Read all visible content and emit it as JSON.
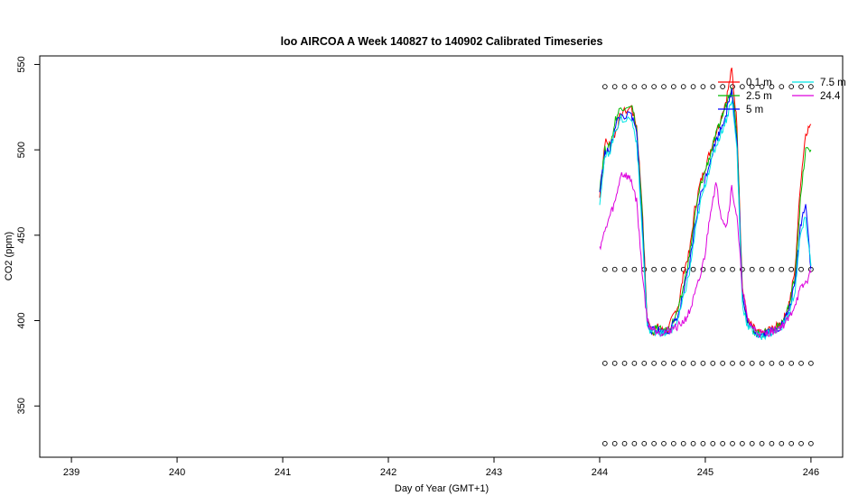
{
  "chart_data": {
    "type": "line",
    "title": "loo AIRCOA A  Week 140827 to 140902  Calibrated Timeseries",
    "xlabel": "Day of Year (GMT+1)",
    "ylabel": "CO2 (ppm)",
    "xlim": [
      238.7,
      246.3
    ],
    "ylim": [
      320,
      555
    ],
    "xticks": [
      239,
      240,
      241,
      242,
      243,
      244,
      245,
      246
    ],
    "yticks": [
      350,
      400,
      450,
      500,
      550
    ],
    "grid": false,
    "legend": "top-right",
    "series": [
      {
        "name": "0.1 m",
        "color": "#ff0000",
        "x": [
          244.0,
          244.05,
          244.1,
          244.15,
          244.2,
          244.3,
          244.35,
          244.4,
          244.45,
          244.5,
          244.55,
          244.6,
          244.65,
          244.7,
          244.75,
          244.8,
          244.85,
          244.9,
          244.95,
          245.0,
          245.05,
          245.1,
          245.15,
          245.2,
          245.25,
          245.3,
          245.35,
          245.4,
          245.45,
          245.5,
          245.55,
          245.6,
          245.65,
          245.7,
          245.75,
          245.8,
          245.85,
          245.9,
          245.95,
          246.0
        ],
        "y": [
          472,
          505,
          503,
          510,
          521,
          525,
          514,
          470,
          400,
          393,
          396,
          394,
          395,
          403,
          410,
          430,
          440,
          465,
          480,
          490,
          500,
          510,
          519,
          530,
          547,
          515,
          420,
          400,
          396,
          393,
          392,
          395,
          395,
          398,
          402,
          412,
          430,
          480,
          510,
          515
        ]
      },
      {
        "name": "2.5 m",
        "color": "#00bb00",
        "x": [
          244.0,
          244.05,
          244.1,
          244.15,
          244.2,
          244.3,
          244.35,
          244.4,
          244.45,
          244.5,
          244.55,
          244.6,
          244.65,
          244.7,
          244.75,
          244.8,
          244.85,
          244.9,
          244.95,
          245.0,
          245.05,
          245.1,
          245.15,
          245.2,
          245.25,
          245.3,
          245.35,
          245.4,
          245.45,
          245.5,
          245.55,
          245.6,
          245.65,
          245.7,
          245.75,
          245.8,
          245.85,
          245.9,
          245.95,
          246.0
        ],
        "y": [
          478,
          500,
          502,
          518,
          525,
          527,
          512,
          465,
          400,
          394,
          396,
          393,
          395,
          400,
          407,
          422,
          438,
          460,
          478,
          488,
          498,
          508,
          518,
          527,
          538,
          510,
          418,
          398,
          395,
          392,
          392,
          394,
          395,
          397,
          401,
          410,
          427,
          470,
          500,
          500
        ]
      },
      {
        "name": "5 m",
        "color": "#0000ff",
        "x": [
          244.0,
          244.05,
          244.1,
          244.15,
          244.2,
          244.3,
          244.35,
          244.4,
          244.45,
          244.5,
          244.55,
          244.6,
          244.65,
          244.7,
          244.75,
          244.8,
          244.85,
          244.9,
          244.95,
          245.0,
          245.05,
          245.1,
          245.15,
          245.2,
          245.25,
          245.3,
          245.35,
          245.4,
          245.45,
          245.5,
          245.55,
          245.6,
          245.65,
          245.7,
          245.75,
          245.8,
          245.85,
          245.9,
          245.95,
          246.0
        ],
        "y": [
          475,
          498,
          500,
          515,
          520,
          520,
          510,
          460,
          398,
          394,
          395,
          393,
          394,
          398,
          404,
          418,
          432,
          455,
          472,
          483,
          495,
          505,
          513,
          522,
          535,
          505,
          415,
          398,
          395,
          392,
          392,
          394,
          394,
          396,
          400,
          408,
          422,
          455,
          470,
          430
        ]
      },
      {
        "name": "7.5 m",
        "color": "#00e5e5",
        "x": [
          244.0,
          244.05,
          244.1,
          244.15,
          244.2,
          244.3,
          244.35,
          244.4,
          244.45,
          244.5,
          244.55,
          244.6,
          244.65,
          244.7,
          244.75,
          244.8,
          244.85,
          244.9,
          244.95,
          245.0,
          245.05,
          245.1,
          245.15,
          245.2,
          245.25,
          245.3,
          245.35,
          245.4,
          245.45,
          245.5,
          245.55,
          245.6,
          245.65,
          245.7,
          245.75,
          245.8,
          245.85,
          245.9,
          245.95,
          246.0
        ],
        "y": [
          470,
          495,
          500,
          512,
          518,
          518,
          505,
          455,
          397,
          393,
          394,
          392,
          393,
          396,
          402,
          415,
          428,
          450,
          468,
          480,
          492,
          502,
          510,
          518,
          530,
          500,
          410,
          397,
          394,
          391,
          391,
          393,
          393,
          395,
          399,
          405,
          418,
          450,
          460,
          432
        ]
      },
      {
        "name": "24.4",
        "color": "#dd00dd",
        "x": [
          244.0,
          244.05,
          244.1,
          244.15,
          244.2,
          244.25,
          244.3,
          244.35,
          244.4,
          244.45,
          244.5,
          244.55,
          244.6,
          244.65,
          244.7,
          244.75,
          244.8,
          244.85,
          244.9,
          244.95,
          245.0,
          245.05,
          245.1,
          245.15,
          245.2,
          245.25,
          245.3,
          245.35,
          245.4,
          245.45,
          245.5,
          245.55,
          245.6,
          245.65,
          245.7,
          245.75,
          245.8,
          245.85,
          245.9,
          245.95,
          246.0
        ],
        "y": [
          443,
          452,
          462,
          470,
          486,
          485,
          482,
          470,
          430,
          400,
          395,
          394,
          393,
          394,
          396,
          397,
          400,
          405,
          415,
          425,
          440,
          465,
          480,
          462,
          455,
          478,
          460,
          420,
          400,
          396,
          393,
          392,
          393,
          394,
          396,
          398,
          402,
          410,
          418,
          422,
          428
        ]
      }
    ],
    "reference_points": {
      "levels": [
        328,
        375,
        430,
        537
      ],
      "x_range": [
        244.05,
        246.0
      ],
      "marker": "open-circle"
    }
  }
}
